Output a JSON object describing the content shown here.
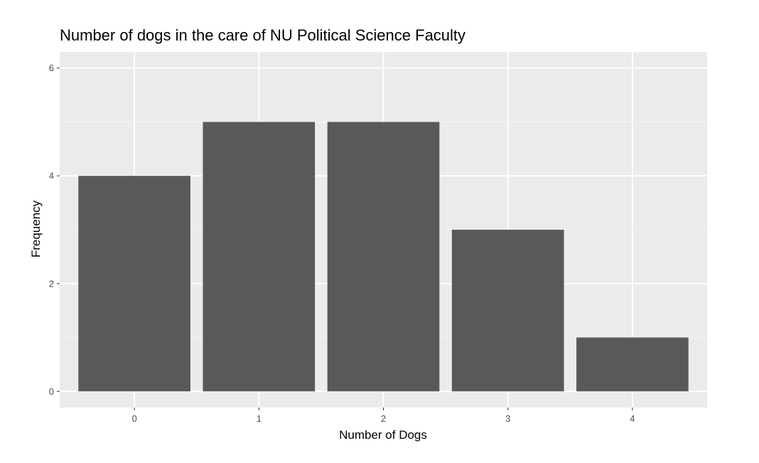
{
  "chart_data": {
    "type": "bar",
    "title": "Number of dogs in the care of NU Political Science Faculty",
    "xlabel": "Number of Dogs",
    "ylabel": "Frequency",
    "categories": [
      "0",
      "1",
      "2",
      "3",
      "4"
    ],
    "values": [
      4,
      5,
      5,
      3,
      1
    ],
    "ylim": [
      -0.3,
      6.3
    ],
    "yticks": [
      "0",
      "2",
      "4",
      "6"
    ],
    "grid": true,
    "legend": "none",
    "colors": {
      "bar": "#595959",
      "panel": "#ebebeb",
      "grid_major": "#ffffff",
      "grid_minor": "#f5f5f5",
      "tick": "#333333"
    }
  }
}
